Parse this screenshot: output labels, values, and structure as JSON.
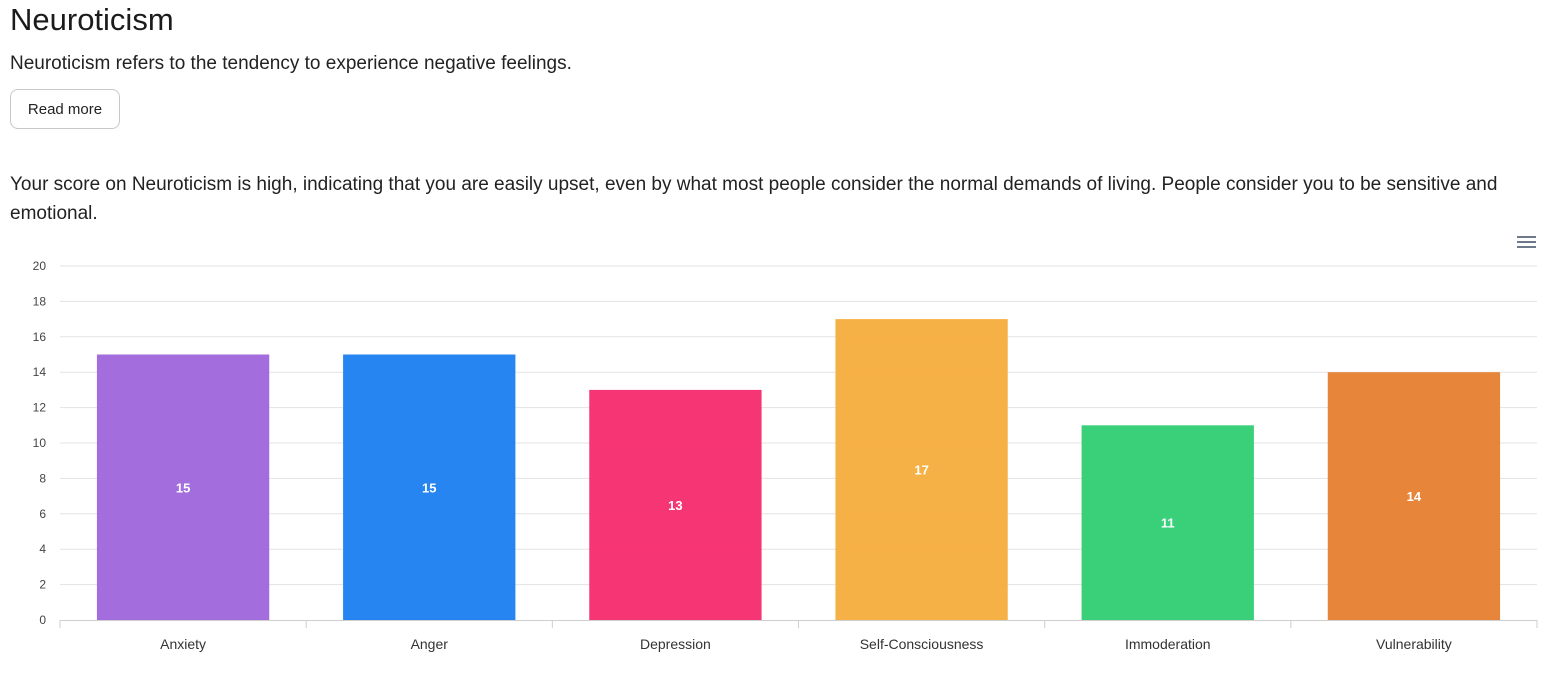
{
  "header": {
    "title": "Neuroticism",
    "intro": "Neuroticism refers to the tendency to experience negative feelings.",
    "read_more_label": "Read more"
  },
  "score": {
    "text": "Your score on Neuroticism is high, indicating that you are easily upset, even by what most people consider the normal demands of living. People consider you to be sensitive and emotional."
  },
  "chart_menu": {
    "icon": "hamburger-menu-icon"
  },
  "chart_data": {
    "type": "bar",
    "categories": [
      "Anxiety",
      "Anger",
      "Depression",
      "Self-Consciousness",
      "Immoderation",
      "Vulnerability"
    ],
    "values": [
      15,
      15,
      13,
      17,
      11,
      14
    ],
    "colors": [
      "#9e65dc",
      "#1b7ef0",
      "#f62a6e",
      "#f6ad3c",
      "#2fce72",
      "#e67e30"
    ],
    "title": "",
    "xlabel": "",
    "ylabel": "",
    "ylim": [
      0,
      20
    ],
    "yticks": [
      0,
      2,
      4,
      6,
      8,
      10,
      12,
      14,
      16,
      18,
      20
    ],
    "data_labels": true,
    "grid": true,
    "legend": "none"
  }
}
